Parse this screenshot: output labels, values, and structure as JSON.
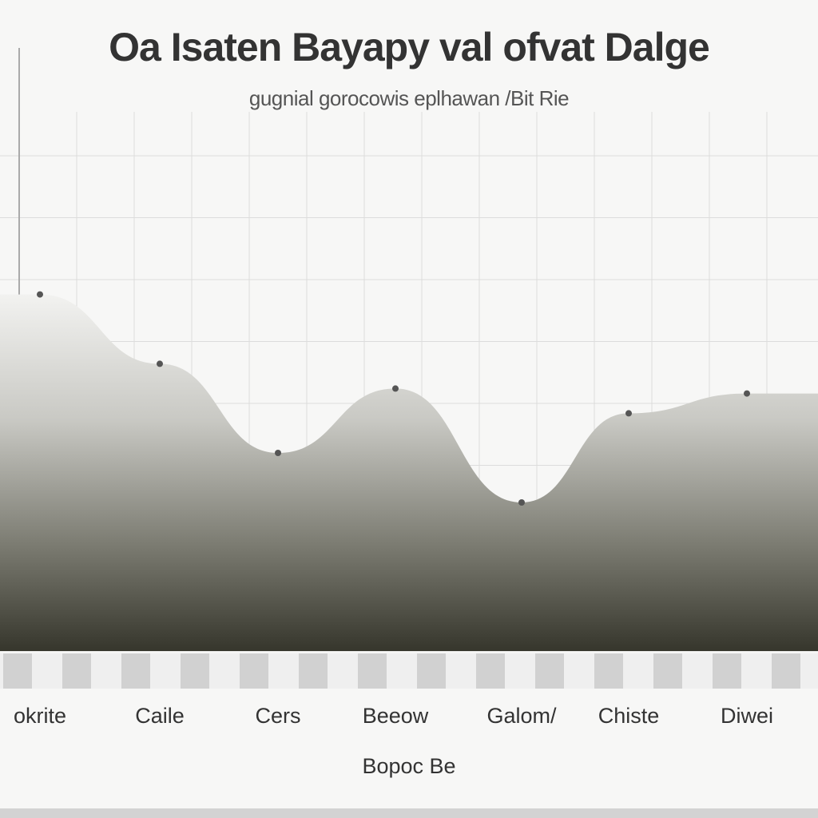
{
  "chart_data": {
    "type": "area",
    "title": "Oa Isaten Bayapy val ofvat Dalge",
    "subtitle": "gugnial gorocowis eplhawan /Bit Rie",
    "xlabel": "Bopoc Be",
    "ylabel": "",
    "categories": [
      "okrite",
      "Caile",
      "Cers",
      "Beeow",
      "Galom/",
      "Chiste",
      "Diwei"
    ],
    "series": [
      {
        "values": [
          72,
          58,
          40,
          53,
          30,
          48,
          52
        ]
      }
    ],
    "ylim": [
      0,
      100
    ],
    "grid": true,
    "legend": "none"
  },
  "colors": {
    "area_dark": "#3a3a30",
    "area_mid": "#8c8c84",
    "area_light": "#d8d8d4",
    "grid": "#dcdcdc",
    "band": "#c9c9c9"
  }
}
